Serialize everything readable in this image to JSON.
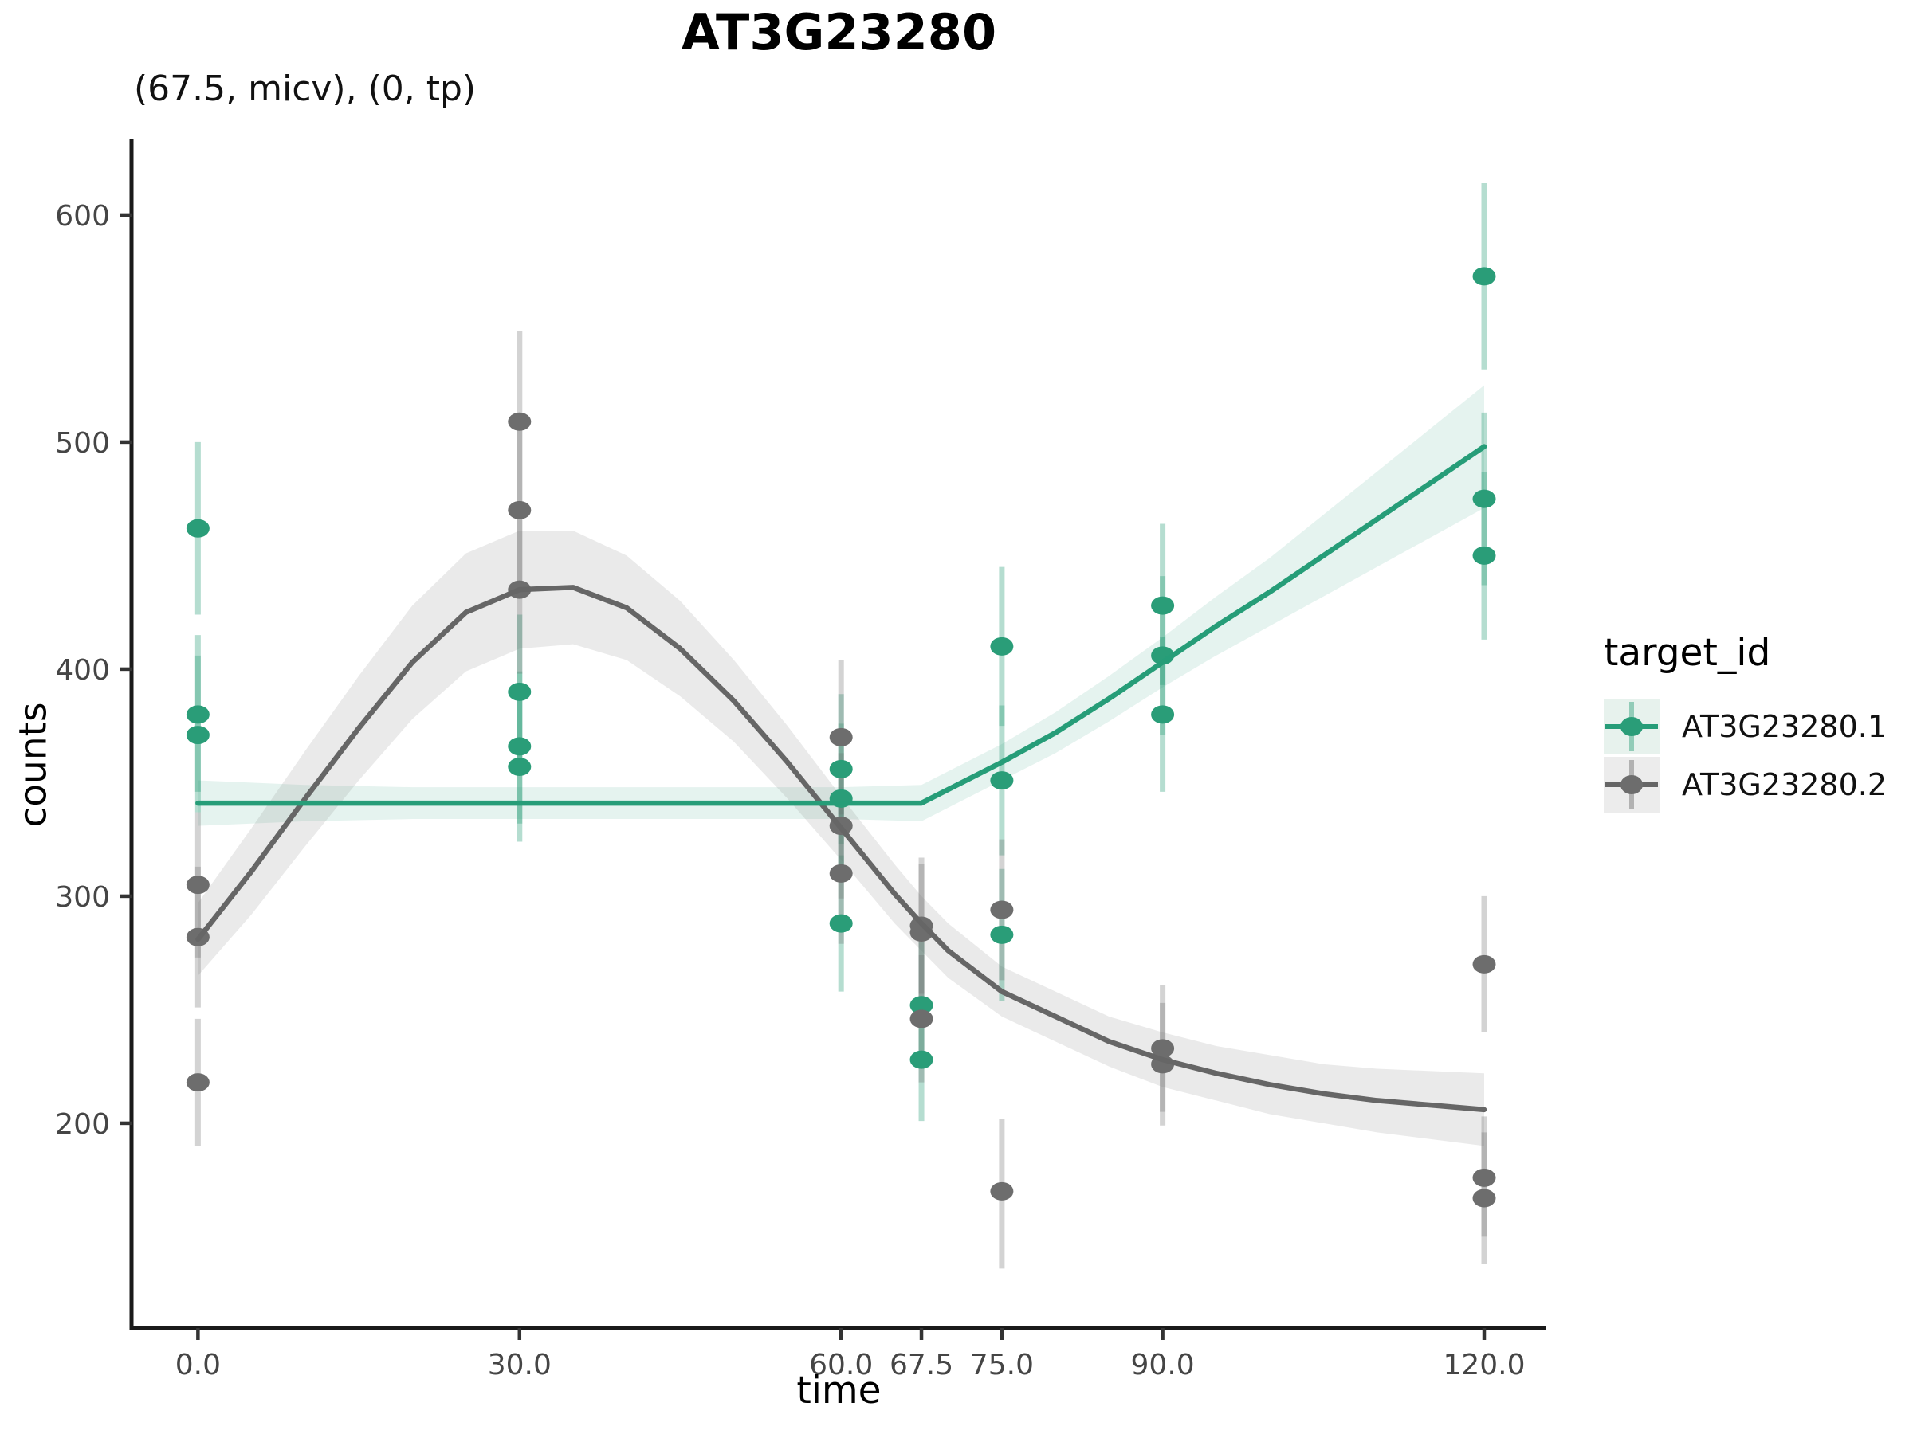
{
  "chart_data": {
    "type": "scatter",
    "title": "AT3G23280",
    "subtitle": "(67.5, micv), (0, tp)",
    "xlabel": "time",
    "ylabel": "counts",
    "xlim": [
      -6.2,
      125.8
    ],
    "ylim": [
      109.8,
      633.3
    ],
    "grid": false,
    "x_ticks": [
      {
        "value": 0,
        "label": "0.0"
      },
      {
        "value": 30,
        "label": "30.0"
      },
      {
        "value": 60,
        "label": "60.0"
      },
      {
        "value": 67.5,
        "label": "67.5"
      },
      {
        "value": 75,
        "label": "75.0"
      },
      {
        "value": 90,
        "label": "90.0"
      },
      {
        "value": 120,
        "label": "120.0"
      }
    ],
    "y_ticks": [
      {
        "value": 200,
        "label": "200"
      },
      {
        "value": 300,
        "label": "300"
      },
      {
        "value": 400,
        "label": "400"
      },
      {
        "value": 500,
        "label": "500"
      },
      {
        "value": 600,
        "label": "600"
      }
    ],
    "legend": {
      "title": "target_id",
      "position": "right"
    },
    "axis_color": "#1a1a1a",
    "tick_color": "#333333",
    "series": [
      {
        "name": "AT3G23280.1",
        "color": "#269d78",
        "point_color": "#2a9d78",
        "bar_color": "#2a9d78",
        "bar_opacity": 0.35,
        "band_color": "#2a9d78",
        "band_opacity": 0.12,
        "key_bg": "#e7f2ed",
        "points": [
          {
            "t": 0,
            "y": 462,
            "lo": 424,
            "hi": 500
          },
          {
            "t": 0,
            "y": 380,
            "lo": 346,
            "hi": 415
          },
          {
            "t": 0,
            "y": 371,
            "lo": 337,
            "hi": 406
          },
          {
            "t": 30,
            "y": 390,
            "lo": 355,
            "hi": 424
          },
          {
            "t": 30,
            "y": 366,
            "lo": 332,
            "hi": 399
          },
          {
            "t": 30,
            "y": 357,
            "lo": 324,
            "hi": 390
          },
          {
            "t": 60,
            "y": 356,
            "lo": 323,
            "hi": 389
          },
          {
            "t": 60,
            "y": 343,
            "lo": 311,
            "hi": 376
          },
          {
            "t": 60,
            "y": 288,
            "lo": 258,
            "hi": 318
          },
          {
            "t": 67.5,
            "y": 252,
            "lo": 224,
            "hi": 280
          },
          {
            "t": 67.5,
            "y": 228,
            "lo": 201,
            "hi": 255
          },
          {
            "t": 75,
            "y": 410,
            "lo": 375,
            "hi": 445
          },
          {
            "t": 75,
            "y": 351,
            "lo": 318,
            "hi": 384
          },
          {
            "t": 75,
            "y": 283,
            "lo": 254,
            "hi": 312
          },
          {
            "t": 90,
            "y": 428,
            "lo": 393,
            "hi": 464
          },
          {
            "t": 90,
            "y": 406,
            "lo": 371,
            "hi": 441
          },
          {
            "t": 90,
            "y": 380,
            "lo": 346,
            "hi": 414
          },
          {
            "t": 120,
            "y": 573,
            "lo": 532,
            "hi": 614
          },
          {
            "t": 120,
            "y": 475,
            "lo": 437,
            "hi": 513
          },
          {
            "t": 120,
            "y": 450,
            "lo": 413,
            "hi": 487
          }
        ],
        "line": [
          [
            0,
            341
          ],
          [
            10,
            341
          ],
          [
            20,
            341
          ],
          [
            30,
            341
          ],
          [
            40,
            341
          ],
          [
            50,
            341
          ],
          [
            60,
            341
          ],
          [
            67.5,
            341
          ],
          [
            75,
            359
          ],
          [
            80,
            372
          ],
          [
            85,
            387
          ],
          [
            90,
            403
          ],
          [
            95,
            419
          ],
          [
            100,
            434
          ],
          [
            105,
            450
          ],
          [
            110,
            466
          ],
          [
            115,
            482
          ],
          [
            120,
            498
          ]
        ],
        "band": [
          [
            0,
            331,
            351
          ],
          [
            10,
            333,
            349
          ],
          [
            20,
            334,
            348
          ],
          [
            30,
            334,
            348
          ],
          [
            40,
            334,
            348
          ],
          [
            50,
            334,
            348
          ],
          [
            60,
            334,
            348
          ],
          [
            67.5,
            333,
            349
          ],
          [
            75,
            351,
            367
          ],
          [
            80,
            363,
            381
          ],
          [
            85,
            377,
            397
          ],
          [
            90,
            392,
            414
          ],
          [
            95,
            406,
            432
          ],
          [
            100,
            419,
            449
          ],
          [
            105,
            432,
            468
          ],
          [
            110,
            445,
            487
          ],
          [
            115,
            458,
            506
          ],
          [
            120,
            471,
            525
          ]
        ]
      },
      {
        "name": "AT3G23280.2",
        "color": "#666666",
        "point_color": "#6d6d6d",
        "bar_color": "#6d6d6d",
        "bar_opacity": 0.3,
        "band_color": "#7a7a7a",
        "band_opacity": 0.16,
        "key_bg": "#ececec",
        "points": [
          {
            "t": 0,
            "y": 305,
            "lo": 273,
            "hi": 337
          },
          {
            "t": 0,
            "y": 282,
            "lo": 251,
            "hi": 313
          },
          {
            "t": 0,
            "y": 218,
            "lo": 190,
            "hi": 246
          },
          {
            "t": 30,
            "y": 509,
            "lo": 469,
            "hi": 549
          },
          {
            "t": 30,
            "y": 470,
            "lo": 432,
            "hi": 508
          },
          {
            "t": 30,
            "y": 435,
            "lo": 398,
            "hi": 472
          },
          {
            "t": 60,
            "y": 370,
            "lo": 336,
            "hi": 404
          },
          {
            "t": 60,
            "y": 331,
            "lo": 299,
            "hi": 363
          },
          {
            "t": 60,
            "y": 310,
            "lo": 279,
            "hi": 341
          },
          {
            "t": 67.5,
            "y": 287,
            "lo": 257,
            "hi": 317
          },
          {
            "t": 67.5,
            "y": 284,
            "lo": 254,
            "hi": 314
          },
          {
            "t": 67.5,
            "y": 246,
            "lo": 218,
            "hi": 274
          },
          {
            "t": 75,
            "y": 294,
            "lo": 263,
            "hi": 325
          },
          {
            "t": 75,
            "y": 170,
            "lo": 136,
            "hi": 202
          },
          {
            "t": 90,
            "y": 233,
            "lo": 205,
            "hi": 261
          },
          {
            "t": 90,
            "y": 226,
            "lo": 199,
            "hi": 253
          },
          {
            "t": 120,
            "y": 270,
            "lo": 240,
            "hi": 300
          },
          {
            "t": 120,
            "y": 176,
            "lo": 150,
            "hi": 203
          },
          {
            "t": 120,
            "y": 167,
            "lo": 138,
            "hi": 196
          }
        ],
        "line": [
          [
            0,
            281
          ],
          [
            5,
            311
          ],
          [
            10,
            343
          ],
          [
            15,
            374
          ],
          [
            20,
            403
          ],
          [
            25,
            425
          ],
          [
            30,
            435
          ],
          [
            35,
            436
          ],
          [
            40,
            427
          ],
          [
            45,
            409
          ],
          [
            50,
            386
          ],
          [
            55,
            359
          ],
          [
            60,
            330
          ],
          [
            65,
            301
          ],
          [
            67.5,
            288
          ],
          [
            70,
            276
          ],
          [
            75,
            258
          ],
          [
            80,
            247
          ],
          [
            85,
            236
          ],
          [
            90,
            228
          ],
          [
            95,
            222
          ],
          [
            100,
            217
          ],
          [
            105,
            213
          ],
          [
            110,
            210
          ],
          [
            115,
            208
          ],
          [
            120,
            206
          ]
        ],
        "band": [
          [
            0,
            265,
            297
          ],
          [
            5,
            292,
            330
          ],
          [
            10,
            322,
            364
          ],
          [
            15,
            351,
            397
          ],
          [
            20,
            378,
            428
          ],
          [
            25,
            399,
            451
          ],
          [
            30,
            409,
            461
          ],
          [
            35,
            411,
            461
          ],
          [
            40,
            404,
            450
          ],
          [
            45,
            388,
            430
          ],
          [
            50,
            368,
            404
          ],
          [
            55,
            343,
            375
          ],
          [
            60,
            316,
            344
          ],
          [
            65,
            288,
            314
          ],
          [
            67.5,
            276,
            300
          ],
          [
            70,
            264,
            288
          ],
          [
            75,
            247,
            269
          ],
          [
            80,
            236,
            258
          ],
          [
            85,
            225,
            247
          ],
          [
            90,
            216,
            240
          ],
          [
            95,
            210,
            234
          ],
          [
            100,
            204,
            230
          ],
          [
            105,
            200,
            226
          ],
          [
            110,
            196,
            224
          ],
          [
            115,
            193,
            223
          ],
          [
            120,
            190,
            222
          ]
        ]
      }
    ]
  }
}
